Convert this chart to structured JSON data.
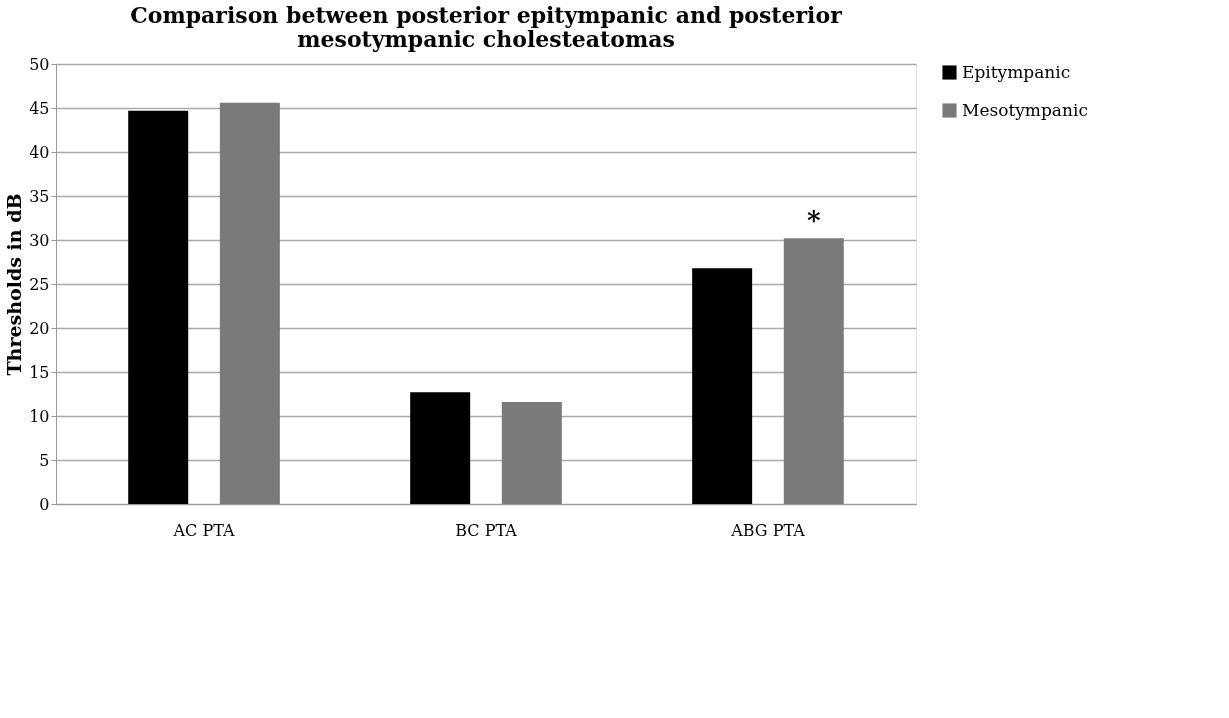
{
  "chart_data": {
    "type": "bar",
    "title": [
      "Comparison between posterior epitympanic and posterior",
      "mesotympanic cholesteatomas"
    ],
    "ylabel": "Thresholds in dB",
    "categories": [
      "AC PTA",
      "BC PTA",
      "ABG PTA"
    ],
    "series": [
      {
        "name": "Epitympanic",
        "color": "#000000",
        "values": [
          44.7,
          12.7,
          26.8
        ]
      },
      {
        "name": "Mesotympanic",
        "color": "#7a7a7a",
        "values": [
          45.6,
          11.6,
          30.2
        ]
      }
    ],
    "ylim": [
      0,
      50
    ],
    "yticks": [
      0,
      5,
      10,
      15,
      20,
      25,
      30,
      35,
      40,
      45,
      50
    ],
    "grid": "y",
    "legend": "right",
    "annotations": [
      "*"
    ]
  }
}
